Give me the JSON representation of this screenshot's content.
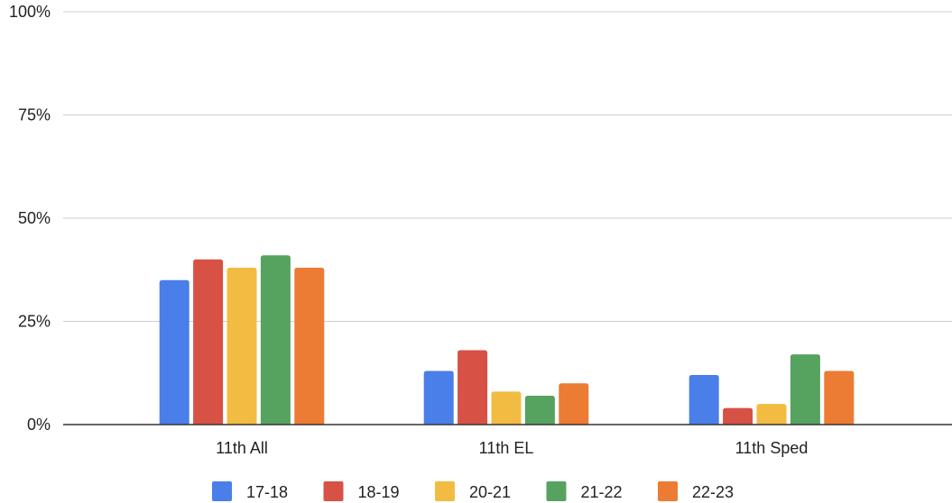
{
  "chart_data": {
    "type": "bar",
    "categories": [
      "11th All",
      "11th EL",
      "11th Sped"
    ],
    "series": [
      {
        "name": "17-18",
        "color": "#4a7ee8",
        "values": [
          35,
          13,
          12
        ]
      },
      {
        "name": "18-19",
        "color": "#d75144",
        "values": [
          40,
          18,
          4
        ]
      },
      {
        "name": "20-21",
        "color": "#f2bc42",
        "values": [
          38,
          8,
          5
        ]
      },
      {
        "name": "21-22",
        "color": "#56a35f",
        "values": [
          41,
          7,
          17
        ]
      },
      {
        "name": "22-23",
        "color": "#ec7b33",
        "values": [
          38,
          10,
          13
        ]
      }
    ],
    "ylim": [
      0,
      100
    ],
    "yticks": [
      0,
      25,
      50,
      75,
      100
    ],
    "ytick_labels": [
      "0%",
      "25%",
      "50%",
      "75%",
      "100%"
    ],
    "grid": true,
    "legend": "bottom-center",
    "title": "",
    "xlabel": "",
    "ylabel": ""
  }
}
